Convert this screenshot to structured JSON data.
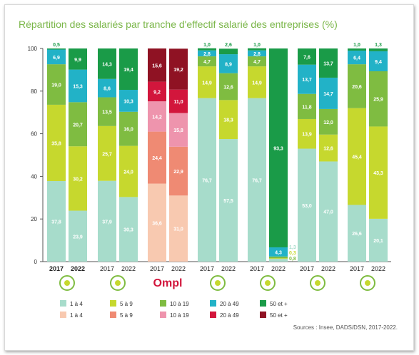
{
  "title": "Répartition des salariés par tranche d'effectif salarié des entreprises (%)",
  "source": "Sources : Insee, DADS/DSN, 2017-2022.",
  "chart_data": {
    "type": "bar",
    "stacked": true,
    "ylim": [
      0,
      100
    ],
    "yticks": [
      0,
      20,
      40,
      60,
      80,
      100
    ],
    "grid": false,
    "legend_position": "bottom",
    "size_classes": [
      "1 à 4",
      "5 à 9",
      "10 à 19",
      "20 à 49",
      "50 et +"
    ],
    "palettes": {
      "green": [
        "#a7dccb",
        "#c6d82e",
        "#7fbc41",
        "#22b2c7",
        "#1a9b48"
      ],
      "red": [
        "#f8c9b0",
        "#ef8a73",
        "#ee94ad",
        "#d2163c",
        "#8f1223"
      ]
    },
    "legend": [
      {
        "palette": "green",
        "labels": [
          "1 à 4",
          "5 à 9",
          "10 à 19",
          "20 à 49",
          "50 et +"
        ]
      },
      {
        "palette": "red",
        "labels": [
          "1 à 4",
          "5 à 9",
          "10 à 19",
          "20 à 49",
          "50 et +"
        ]
      }
    ],
    "groups": [
      {
        "icon": "sector-1-icon",
        "year_style": "bold",
        "palette": "green",
        "bars": [
          {
            "year": "2017",
            "values": [
              37.8,
              35.8,
              19.0,
              6.9,
              0.5
            ]
          },
          {
            "year": "2022",
            "values": [
              23.9,
              30.2,
              20.7,
              15.3,
              9.9
            ]
          }
        ]
      },
      {
        "icon": "sector-2-icon",
        "palette": "green",
        "bars": [
          {
            "year": "2017",
            "values": [
              37.9,
              25.7,
              13.5,
              8.6,
              14.3
            ]
          },
          {
            "year": "2022",
            "values": [
              30.3,
              24.0,
              16.0,
              10.3,
              19.4
            ]
          }
        ]
      },
      {
        "icon": "ompl-logo",
        "logo_text": "Ompl",
        "palette": "red",
        "bars": [
          {
            "year": "2017",
            "values": [
              36.6,
              24.4,
              14.2,
              9.2,
              15.6
            ]
          },
          {
            "year": "2022",
            "values": [
              31.0,
              22.9,
              15.8,
              11.0,
              19.2
            ]
          }
        ]
      },
      {
        "icon": "sector-4-icon",
        "palette": "green",
        "bars": [
          {
            "year": "2017",
            "values": [
              76.7,
              14.9,
              4.7,
              2.8,
              1.0
            ]
          },
          {
            "year": "2022",
            "values": [
              57.5,
              18.3,
              12.6,
              8.9,
              2.6
            ]
          }
        ]
      },
      {
        "icon": "sector-5-icon",
        "palette": "green",
        "bars": [
          {
            "year": "2017",
            "values": [
              76.7,
              14.9,
              4.7,
              2.8,
              1.0
            ]
          },
          {
            "year": "2022",
            "values": [
              1.3,
              0.3,
              0.8,
              4.3,
              93.3
            ]
          }
        ]
      },
      {
        "icon": "sector-6-icon",
        "palette": "green",
        "bars": [
          {
            "year": "2017",
            "values": [
              53.0,
              13.9,
              11.8,
              13.7,
              7.6
            ]
          },
          {
            "year": "2022",
            "values": [
              47.0,
              12.6,
              12.0,
              14.7,
              13.7
            ]
          }
        ]
      },
      {
        "icon": "sector-7-icon",
        "palette": "green",
        "bars": [
          {
            "year": "2017",
            "values": [
              26.6,
              45.4,
              20.6,
              6.4,
              1.0
            ]
          },
          {
            "year": "2022",
            "values": [
              20.1,
              43.3,
              25.9,
              9.4,
              1.3
            ]
          }
        ]
      }
    ]
  }
}
